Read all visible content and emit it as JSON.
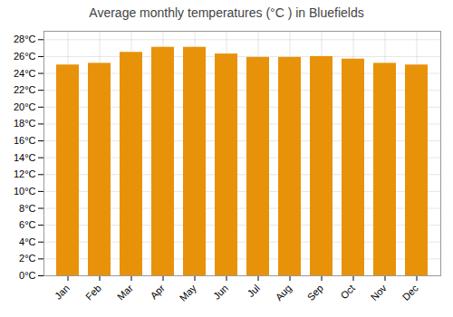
{
  "chart_data": {
    "type": "bar",
    "title": "Average monthly temperatures (°C ) in Bluefields",
    "categories": [
      "Jan",
      "Feb",
      "Mar",
      "Apr",
      "May",
      "Jun",
      "Jul",
      "Aug",
      "Sep",
      "Oct",
      "Nov",
      "Dec"
    ],
    "values": [
      25.0,
      25.2,
      26.5,
      27.1,
      27.1,
      26.3,
      25.9,
      25.9,
      26.0,
      25.7,
      25.2,
      25.0
    ],
    "color": "#E8920A",
    "ylim": [
      0,
      29
    ],
    "yticks": [
      {
        "value": 0,
        "label": "0°C"
      },
      {
        "value": 2,
        "label": "2°C"
      },
      {
        "value": 4,
        "label": "4°C"
      },
      {
        "value": 6,
        "label": "6°C"
      },
      {
        "value": 8,
        "label": "8°C"
      },
      {
        "value": 10,
        "label": "10°C"
      },
      {
        "value": 12,
        "label": "12°C"
      },
      {
        "value": 14,
        "label": "14°C"
      },
      {
        "value": 16,
        "label": "16°C"
      },
      {
        "value": 18,
        "label": "18°C"
      },
      {
        "value": 20,
        "label": "20°C"
      },
      {
        "value": 22,
        "label": "22°C"
      },
      {
        "value": 24,
        "label": "24°C"
      },
      {
        "value": 26,
        "label": "26°C"
      },
      {
        "value": 28,
        "label": "28°C"
      }
    ],
    "grid": true
  }
}
